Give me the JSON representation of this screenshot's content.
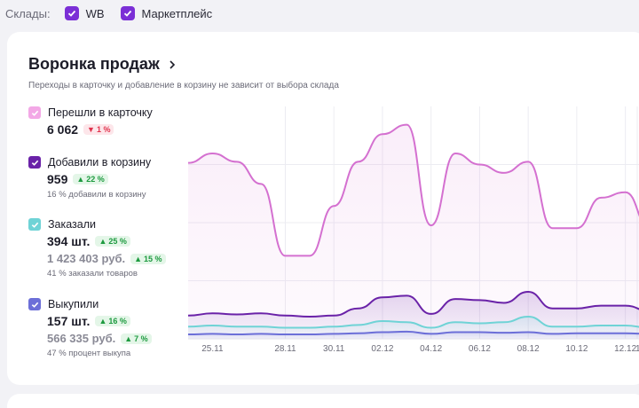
{
  "warehouses": {
    "label": "Склады:",
    "options": [
      {
        "label": "WB",
        "checked": true
      },
      {
        "label": "Маркетплейс",
        "checked": true
      }
    ],
    "check_color": "#7b2fd6"
  },
  "funnel": {
    "title": "Воронка продаж",
    "subtitle": "Переходы в карточку и добавление в корзину не зависит от выбора склада",
    "metrics": [
      {
        "label": "Перешли в карточку",
        "color": "#f3a8e6",
        "value": "6 062",
        "badge": "1 %",
        "badge_dir": "down"
      },
      {
        "label": "Добавили в корзину",
        "color": "#6a22a8",
        "value": "959",
        "badge": "22 %",
        "badge_dir": "up",
        "note": "16 % добавили в корзину"
      },
      {
        "label": "Заказали",
        "color": "#6fd3d6",
        "value": "394 шт.",
        "badge": "25 %",
        "badge_dir": "up",
        "value2": "1 423 403 руб.",
        "badge2": "15 %",
        "note": "41 % заказали товаров"
      },
      {
        "label": "Выкупили",
        "color": "#6c6fd8",
        "value": "157 шт.",
        "badge": "16 %",
        "badge_dir": "up",
        "value2": "566 335 руб.",
        "badge2": "7 %",
        "note": "47 % процент выкупа"
      }
    ]
  },
  "chart_data": {
    "type": "line",
    "x": [
      "24.11",
      "25.11",
      "26.11",
      "27.11",
      "28.11",
      "29.11",
      "30.11",
      "01.12",
      "02.12",
      "03.12",
      "04.12",
      "05.12",
      "06.12",
      "07.12",
      "08.12",
      "09.12",
      "10.12",
      "11.12",
      "12.12",
      "13.12"
    ],
    "xticks": [
      "25.11",
      "28.11",
      "30.11",
      "02.12",
      "04.12",
      "06.12",
      "08.12",
      "10.12",
      "12.12",
      "1"
    ],
    "series": [
      {
        "name": "Перешли в карточку",
        "color": "#d470d0",
        "values": [
          318,
          335,
          320,
          280,
          150,
          150,
          240,
          320,
          370,
          387,
          205,
          335,
          315,
          300,
          320,
          200,
          200,
          255,
          265,
          200
        ]
      },
      {
        "name": "Добавили в корзину",
        "color": "#6a22a8",
        "values": [
          42,
          46,
          44,
          46,
          42,
          40,
          42,
          55,
          75,
          78,
          45,
          72,
          70,
          65,
          85,
          55,
          55,
          60,
          60,
          50
        ]
      },
      {
        "name": "Заказали",
        "color": "#6fd3d6",
        "values": [
          22,
          24,
          22,
          22,
          20,
          20,
          22,
          25,
          32,
          30,
          20,
          30,
          28,
          30,
          40,
          22,
          22,
          24,
          24,
          20
        ]
      },
      {
        "name": "Выкупили",
        "color": "#6c6fd8",
        "values": [
          8,
          9,
          8,
          9,
          8,
          8,
          9,
          10,
          12,
          13,
          9,
          12,
          12,
          11,
          12,
          9,
          10,
          10,
          10,
          9
        ]
      }
    ],
    "ylim": [
      0,
      420
    ],
    "grid": true
  }
}
